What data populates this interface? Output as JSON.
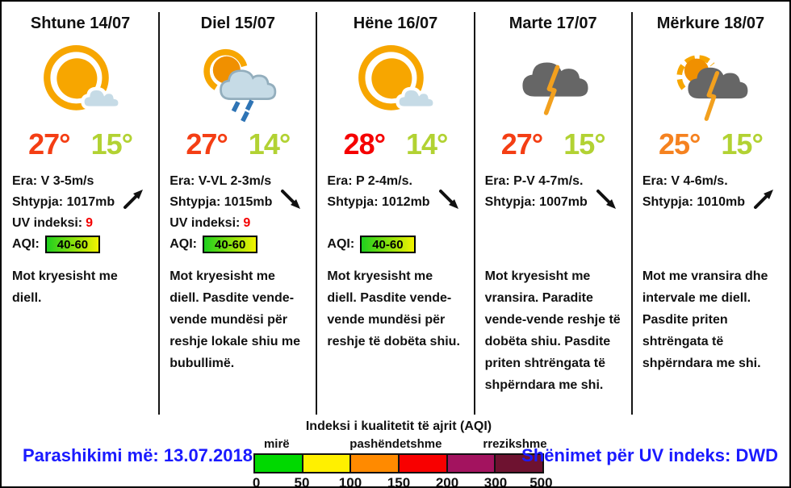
{
  "days": [
    {
      "title": "Shtune 14/07",
      "icon": "sun-small-cloud-icon",
      "high": "27°",
      "high_color": "#f43e14",
      "low": "15°",
      "low_color": "#b2d233",
      "wind": "Era: V 3-5m/s",
      "pressure": "Shtypja: 1017mb",
      "trend": "up-right",
      "uv_label": "UV indeksi:",
      "uv_value": "9",
      "aqi_label": "AQI:",
      "aqi_value": "40-60",
      "description": "Mot kryesisht me diell."
    },
    {
      "title": "Diel 15/07",
      "icon": "sun-cloud-rain-icon",
      "high": "27°",
      "high_color": "#f43e14",
      "low": "14°",
      "low_color": "#b2d233",
      "wind": "Era: V-VL 2-3m/s",
      "pressure": "Shtypja: 1015mb",
      "trend": "down-right",
      "uv_label": "UV indeksi:",
      "uv_value": "9",
      "aqi_label": "AQI:",
      "aqi_value": "40-60",
      "description": "Mot kryesisht me diell. Pasdite vende-vende mundësi për reshje lokale shiu me bubullimë."
    },
    {
      "title": "Hëne 16/07",
      "icon": "sun-small-cloud-icon",
      "high": "28°",
      "high_color": "#f50000",
      "low": "14°",
      "low_color": "#b2d233",
      "wind": "Era: P 2-4m/s.",
      "pressure": "Shtypja: 1012mb",
      "trend": "down-right",
      "aqi_label": "AQI:",
      "aqi_value": "40-60",
      "description": "Mot kryesisht me diell. Pasdite vende-vende mundësi për reshje të dobëta shiu."
    },
    {
      "title": "Marte 17/07",
      "icon": "thunder-cloud-icon",
      "high": "27°",
      "high_color": "#f43e14",
      "low": "15°",
      "low_color": "#b2d233",
      "wind": "Era: P-V 4-7m/s.",
      "pressure": "Shtypja: 1007mb",
      "trend": "down-right",
      "description": "Mot kryesisht me vransira. Paradite vende-vende reshje të dobëta shiu. Pasdite priten shtrëngata të shpërndara me shi."
    },
    {
      "title": "Mërkure 18/07",
      "icon": "sun-thunder-cloud-icon",
      "high": "25°",
      "high_color": "#f58220",
      "low": "15°",
      "low_color": "#b2d233",
      "wind": "Era: V 4-6m/s.",
      "pressure": "Shtypja: 1010mb",
      "trend": "up-right",
      "description": "Mot me vransira dhe intervale me diell. Pasdite priten shtrëngata të shpërndara me shi."
    }
  ],
  "footer": {
    "forecast_date": "Parashikimi më: 13.07.2018",
    "uv_source": "Shënimet për UV indeks: DWD"
  },
  "aqi_legend": {
    "title": "Indeksi i kualitetit të ajrit (AQI)",
    "labels": [
      "mirë",
      "pashëndetshme",
      "rrezikshme"
    ],
    "segments": [
      "#00d900",
      "#fff000",
      "#ff8a00",
      "#f80000",
      "#a3135f",
      "#6e1230"
    ],
    "ticks": [
      "0",
      "50",
      "100",
      "150",
      "200",
      "300",
      "500"
    ]
  },
  "colors": {
    "accent_blue": "#1a1aff",
    "uv_red": "#f40000",
    "aqi_badge_gradient": [
      "#1ecf1e",
      "#f2f200"
    ]
  }
}
